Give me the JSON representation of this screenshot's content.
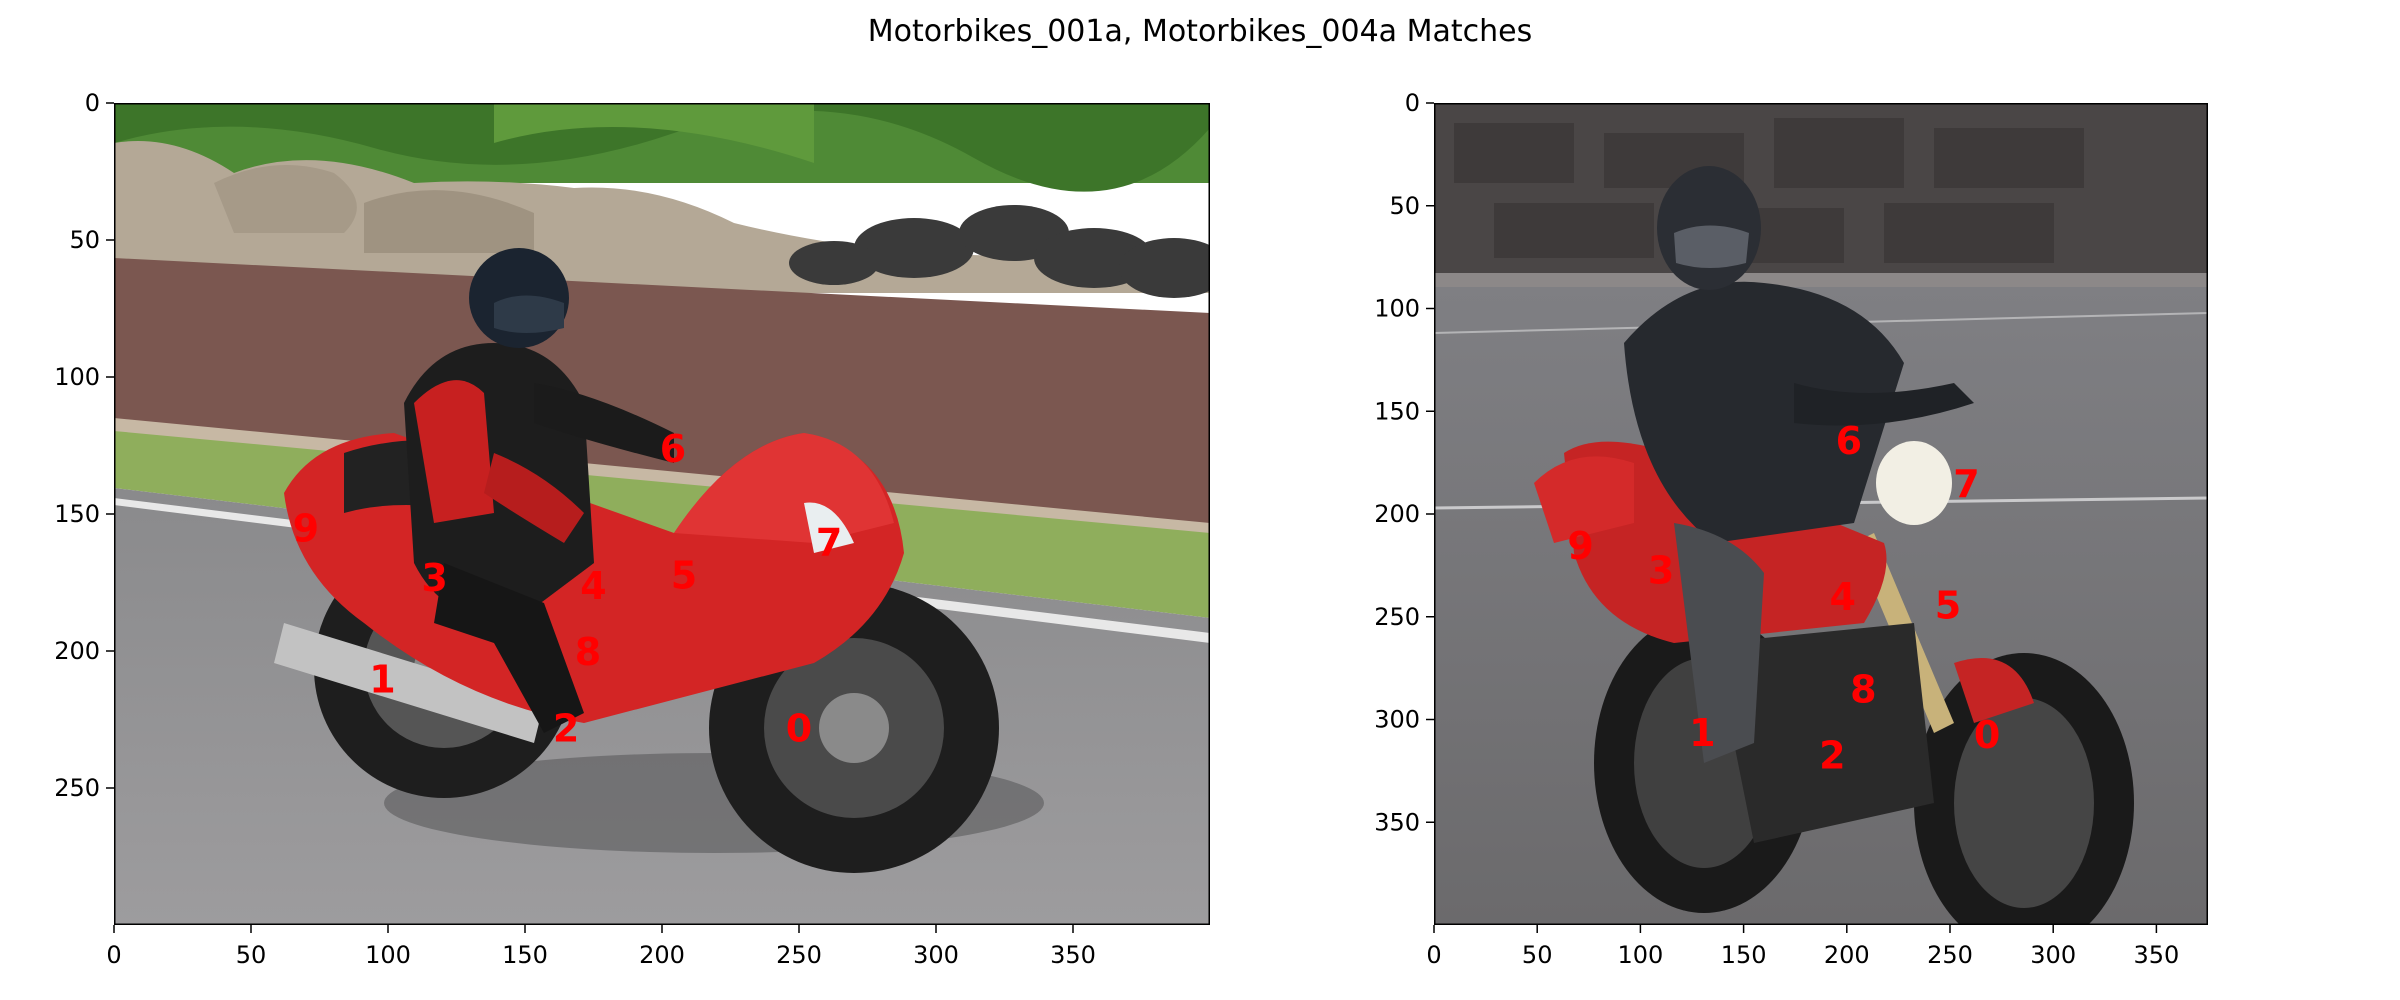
{
  "figure": {
    "title": "Motorbikes_001a, Motorbikes_004a Matches"
  },
  "colors": {
    "keypoint": "#ff0000",
    "axis": "#000000",
    "background": "#ffffff"
  },
  "panels": [
    {
      "id": "left",
      "image_name": "Motorbikes_001a",
      "x_ticks": [
        "0",
        "50",
        "100",
        "150",
        "200",
        "250",
        "300",
        "350"
      ],
      "y_ticks": [
        "0",
        "50",
        "100",
        "150",
        "200",
        "250"
      ],
      "x_range": [
        0,
        400
      ],
      "y_range": [
        300,
        0
      ],
      "keypoints": [
        {
          "label": "0",
          "x": 250,
          "y": 228
        },
        {
          "label": "1",
          "x": 98,
          "y": 210
        },
        {
          "label": "2",
          "x": 165,
          "y": 228
        },
        {
          "label": "3",
          "x": 117,
          "y": 173
        },
        {
          "label": "4",
          "x": 175,
          "y": 176
        },
        {
          "label": "5",
          "x": 208,
          "y": 172
        },
        {
          "label": "6",
          "x": 204,
          "y": 126
        },
        {
          "label": "7",
          "x": 261,
          "y": 160
        },
        {
          "label": "8",
          "x": 173,
          "y": 200
        },
        {
          "label": "9",
          "x": 70,
          "y": 155
        }
      ]
    },
    {
      "id": "right",
      "image_name": "Motorbikes_004a",
      "x_ticks": [
        "0",
        "50",
        "100",
        "150",
        "200",
        "250",
        "300",
        "350"
      ],
      "y_ticks": [
        "0",
        "50",
        "100",
        "150",
        "200",
        "250",
        "300",
        "350"
      ],
      "x_range": [
        0,
        375
      ],
      "y_range": [
        400,
        0
      ],
      "keypoints": [
        {
          "label": "0",
          "x": 268,
          "y": 307
        },
        {
          "label": "1",
          "x": 130,
          "y": 306
        },
        {
          "label": "2",
          "x": 193,
          "y": 317
        },
        {
          "label": "3",
          "x": 110,
          "y": 227
        },
        {
          "label": "4",
          "x": 198,
          "y": 240
        },
        {
          "label": "5",
          "x": 249,
          "y": 244
        },
        {
          "label": "6",
          "x": 201,
          "y": 164
        },
        {
          "label": "7",
          "x": 258,
          "y": 185
        },
        {
          "label": "8",
          "x": 208,
          "y": 285
        },
        {
          "label": "9",
          "x": 71,
          "y": 215
        }
      ]
    }
  ]
}
